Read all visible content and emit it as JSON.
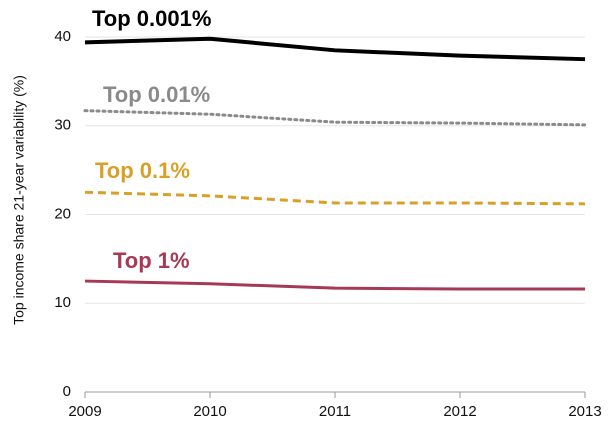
{
  "chart_data": {
    "type": "line",
    "y_label": "Top income  share 21-year variability (%)",
    "x": [
      2009,
      2010,
      2011,
      2012,
      2013
    ],
    "xlim": [
      2009,
      2013
    ],
    "xticks": [
      2009,
      2010,
      2011,
      2012,
      2013
    ],
    "ylim": [
      0,
      40
    ],
    "yticks": [
      0,
      10,
      20,
      30,
      40
    ],
    "grid": true,
    "series": [
      {
        "name": "Top 0.001%",
        "color": "#000000",
        "dash": "solid",
        "values": [
          39.4,
          39.8,
          38.5,
          37.9,
          37.5
        ]
      },
      {
        "name": "Top 0.01%",
        "color": "#8a8a8a",
        "dash": "dotted",
        "values": [
          31.7,
          31.3,
          30.4,
          30.3,
          30.1
        ]
      },
      {
        "name": "Top 0.1%",
        "color": "#d9a028",
        "dash": "dashed",
        "values": [
          22.5,
          22.1,
          21.3,
          21.3,
          21.2
        ]
      },
      {
        "name": "Top 1%",
        "color": "#a63a55",
        "dash": "solid",
        "values": [
          12.5,
          12.2,
          11.7,
          11.6,
          11.6
        ]
      }
    ]
  }
}
